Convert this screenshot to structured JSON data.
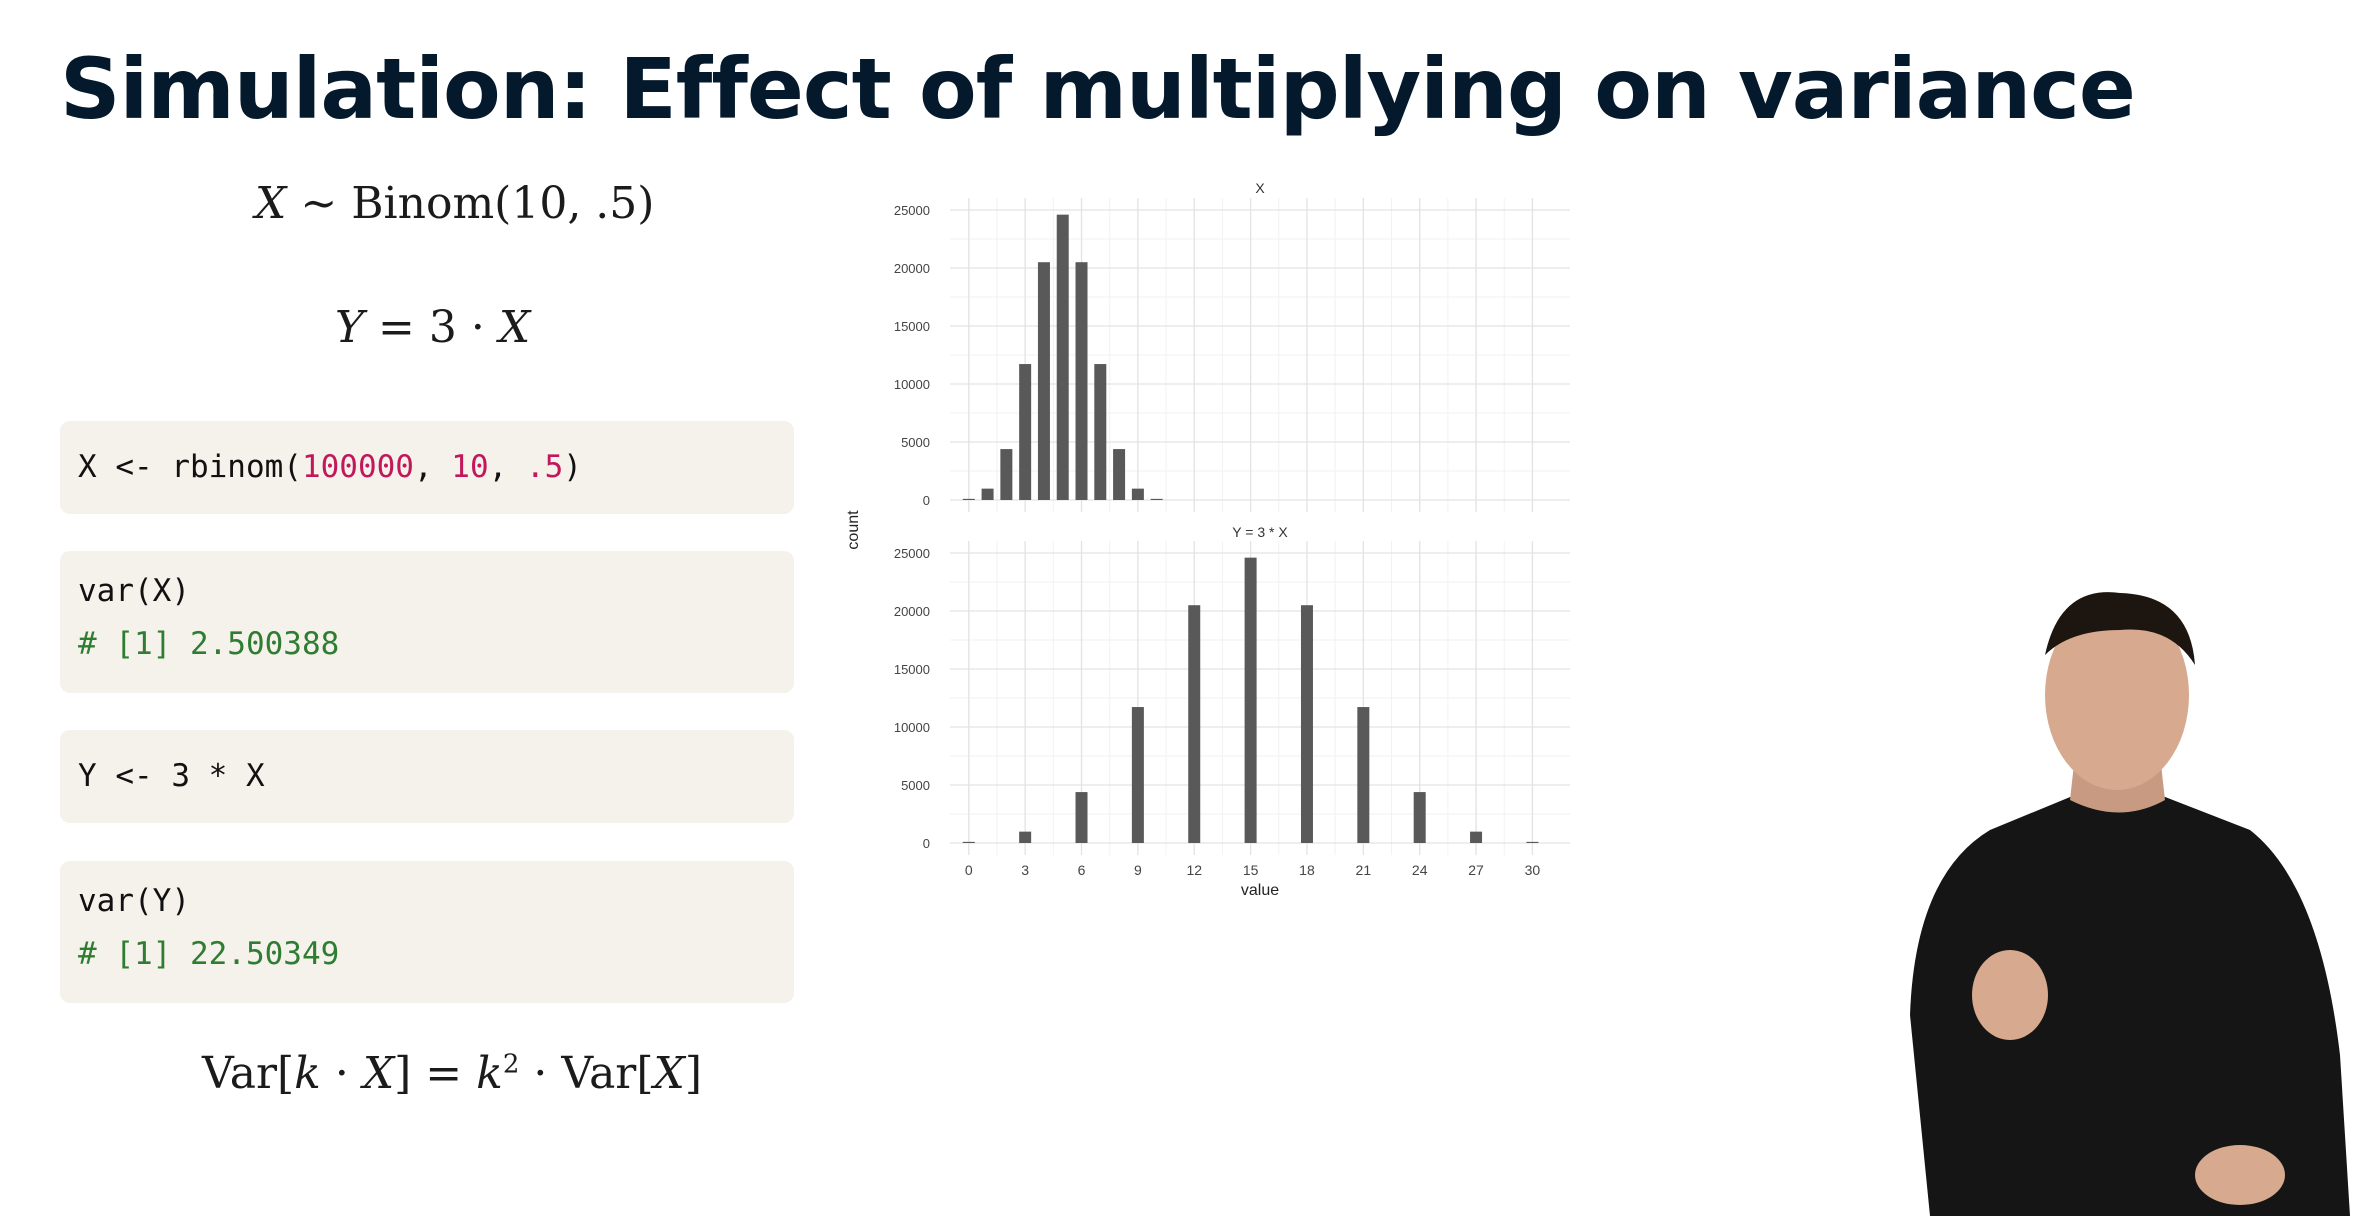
{
  "slide": {
    "title": "Simulation: Effect of multiplying on variance"
  },
  "math": {
    "dist_lhs": "X",
    "dist_op": "∼",
    "dist_rhs": "Binom(10, .5)",
    "y_lhs": "Y",
    "y_rhs": "= 3 · ",
    "y_x": "X",
    "formula_a": "Var[",
    "formula_k": "k",
    "formula_b": " · ",
    "formula_x": "X",
    "formula_c": "] = ",
    "formula_k2": "k",
    "formula_sup": "2",
    "formula_d": " · Var[",
    "formula_x2": "X",
    "formula_e": "]"
  },
  "code": {
    "block1": {
      "pre": "X <- rbinom(",
      "n1": "100000",
      "sep1": ", ",
      "n2": "10",
      "sep2": ", ",
      "n3": ".5",
      "post": ")"
    },
    "block2": {
      "line1": "var(X)",
      "line2": "# [1] 2.500388"
    },
    "block3": {
      "line1": "Y <- 3 * X"
    },
    "block4": {
      "line1": "var(Y)",
      "line2": "# [1] 22.50349"
    }
  },
  "chart_data": [
    {
      "type": "bar",
      "title": "X",
      "xlabel": "value",
      "ylabel": "count",
      "x": [
        0,
        1,
        2,
        3,
        4,
        5,
        6,
        7,
        8,
        9,
        10
      ],
      "values": [
        98,
        980,
        4390,
        11720,
        20500,
        24600,
        20500,
        11720,
        4390,
        980,
        98
      ],
      "ylim": [
        0,
        25000
      ],
      "yticks": [
        0,
        5000,
        10000,
        15000,
        20000,
        25000
      ],
      "xlim": [
        -1,
        32
      ]
    },
    {
      "type": "bar",
      "title": "Y = 3 * X",
      "xlabel": "value",
      "ylabel": "count",
      "x": [
        0,
        3,
        6,
        9,
        12,
        15,
        18,
        21,
        24,
        27,
        30
      ],
      "values": [
        98,
        980,
        4390,
        11720,
        20500,
        24600,
        20500,
        11720,
        4390,
        980,
        98
      ],
      "ylim": [
        0,
        25000
      ],
      "yticks": [
        0,
        5000,
        10000,
        15000,
        20000,
        25000
      ],
      "xticks": [
        0,
        3,
        6,
        9,
        12,
        15,
        18,
        21,
        24,
        27,
        30
      ],
      "xlim": [
        -1,
        32
      ]
    }
  ],
  "chart_labels": {
    "title1": "X",
    "title2": "Y = 3 * X",
    "xlabel": "value",
    "ylabel": "count",
    "yticks": [
      "0",
      "5000",
      "10000",
      "15000",
      "20000",
      "25000"
    ],
    "xticks": [
      "0",
      "3",
      "6",
      "9",
      "12",
      "15",
      "18",
      "21",
      "24",
      "27",
      "30"
    ]
  },
  "colors": {
    "bar": "#595959",
    "code_bg": "#f5f1eb",
    "number": "#c2185b",
    "comment": "#2e7d32"
  }
}
